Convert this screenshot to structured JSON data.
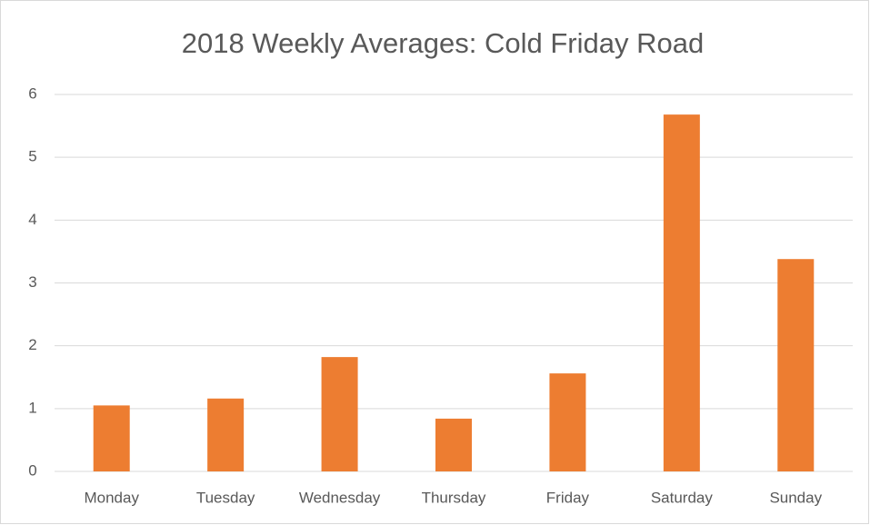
{
  "chart_data": {
    "type": "bar",
    "title": "2018 Weekly Averages: Cold Friday Road",
    "categories": [
      "Monday",
      "Tuesday",
      "Wednesday",
      "Thursday",
      "Friday",
      "Saturday",
      "Sunday"
    ],
    "values": [
      1.05,
      1.16,
      1.82,
      0.84,
      1.56,
      5.68,
      3.38
    ],
    "color": "#ed7d31",
    "ylim": [
      0,
      6
    ],
    "yticks": [
      0,
      1,
      2,
      3,
      4,
      5,
      6
    ],
    "grid": true
  }
}
